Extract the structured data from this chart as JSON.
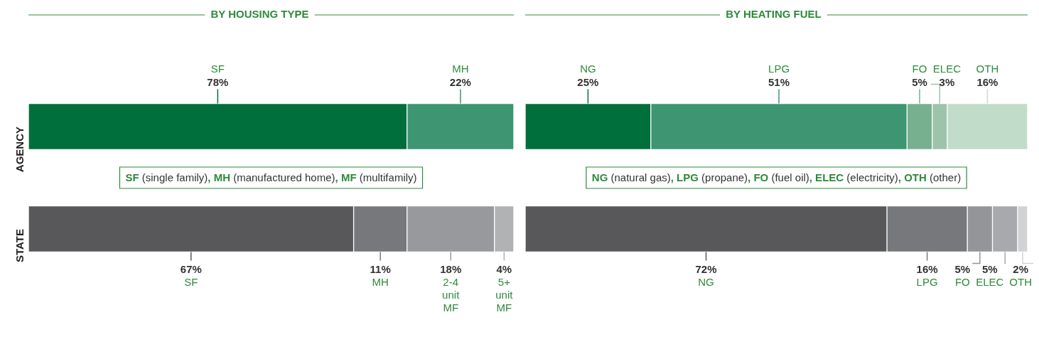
{
  "chart_data": [
    {
      "type": "bar",
      "orientation": "horizontal",
      "stacked": true,
      "title": "BY HOUSING TYPE",
      "categories": [
        "AGENCY",
        "STATE"
      ],
      "xlim": [
        0,
        100
      ],
      "tick_labels": "y",
      "annotations": [
        "SF (single family), MH (manufactured home), MF (multifamily)"
      ],
      "series": [
        {
          "name": "SF",
          "colors": [
            "#006f3c",
            "#58585a"
          ],
          "values": [
            78,
            67
          ],
          "value_labels": [
            "78%",
            "67%"
          ]
        },
        {
          "name": "MH",
          "colors": [
            "#3d9671",
            "#77787b"
          ],
          "values": [
            22,
            11
          ],
          "value_labels": [
            "22%",
            "11%"
          ]
        },
        {
          "name": "2-4 unit MF",
          "colors": [
            "#77b08f",
            "#98999c"
          ],
          "values": [
            null,
            18
          ],
          "value_labels": [
            null,
            "18%"
          ]
        },
        {
          "name": "5+ unit MF",
          "colors": [
            "#9dc4ab",
            "#b1b2b4"
          ],
          "values": [
            null,
            4
          ],
          "value_labels": [
            null,
            "4%"
          ]
        }
      ]
    },
    {
      "type": "bar",
      "orientation": "horizontal",
      "stacked": true,
      "title": "BY HEATING FUEL",
      "categories": [
        null,
        null
      ],
      "xlim": [
        0,
        100
      ],
      "tick_labels": false,
      "annotations": [
        "NG (natural gas), LPG (propane), FO (fuel oil), ELEC (electricity), OTH (other)"
      ],
      "series": [
        {
          "name": "NG",
          "colors": [
            "#006f3c",
            "#58585a"
          ],
          "values": [
            25,
            72
          ],
          "value_labels": [
            "25%",
            "72%"
          ]
        },
        {
          "name": "LPG",
          "colors": [
            "#3d9671",
            "#77787b"
          ],
          "values": [
            51,
            16
          ],
          "value_labels": [
            "51%",
            "16%"
          ]
        },
        {
          "name": "FO",
          "colors": [
            "#77b08f",
            "#939598"
          ],
          "values": [
            5,
            5
          ],
          "value_labels": [
            "5%",
            "5%"
          ]
        },
        {
          "name": "ELEC",
          "colors": [
            "#9dc4ab",
            "#a7a9ac"
          ],
          "values": [
            3,
            5
          ],
          "value_labels": [
            "3%",
            "5%"
          ]
        },
        {
          "name": "OTH",
          "colors": [
            "#c1dcc9",
            "#d1d2d4"
          ],
          "values": [
            16,
            2
          ],
          "value_labels": [
            "16%",
            "2%"
          ]
        }
      ]
    }
  ]
}
